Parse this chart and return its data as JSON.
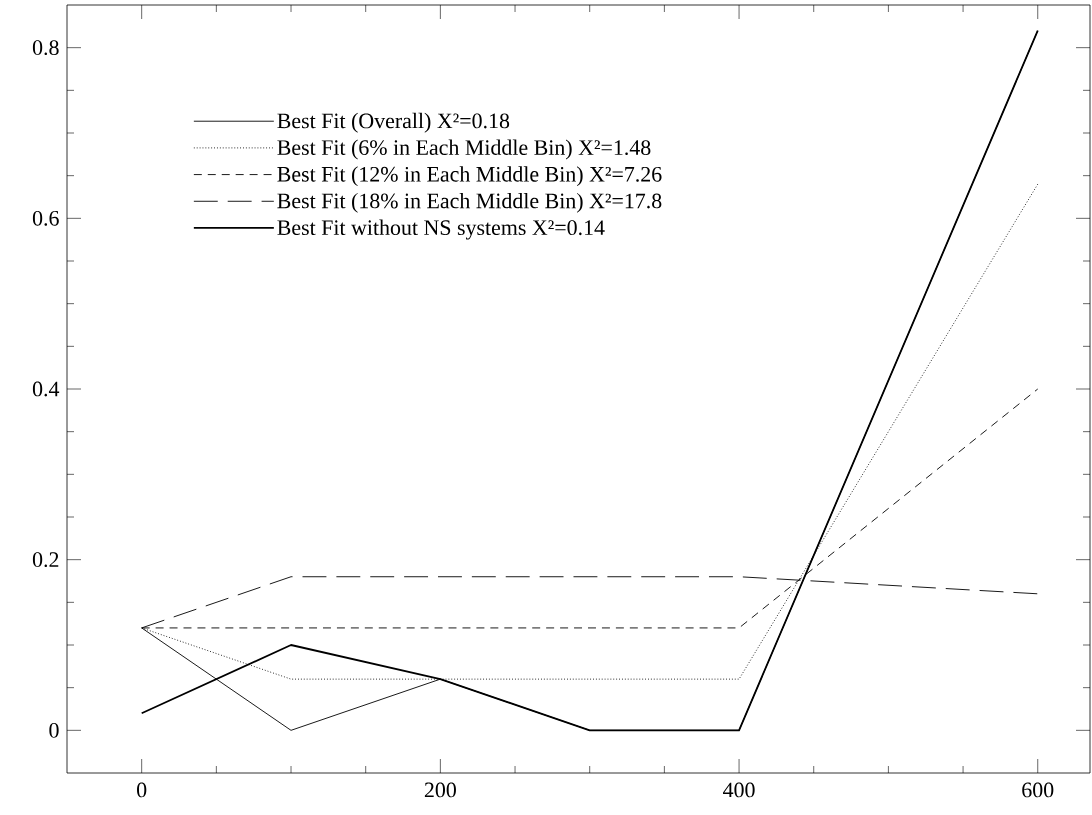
{
  "chart_data": {
    "type": "line",
    "x": [
      0,
      100,
      200,
      300,
      400,
      600
    ],
    "series": [
      {
        "name": "Best Fit (Overall)  X²=0.18",
        "color": "#000000",
        "line_style": "solid",
        "values": [
          0.12,
          0,
          0.06,
          0,
          0,
          0.82
        ]
      },
      {
        "name": "Best Fit (6% in Each Middle Bin) X²=1.48",
        "color": "#000000",
        "line_style": "dotted",
        "values": [
          0.12,
          0.06,
          0.06,
          0.06,
          0.06,
          0.64
        ]
      },
      {
        "name": "Best Fit (12% in Each Middle Bin) X²=7.26",
        "color": "#000000",
        "line_style": "dashed",
        "values": [
          0.12,
          0.12,
          0.12,
          0.12,
          0.12,
          0.4
        ]
      },
      {
        "name": "Best Fit (18% in Each Middle Bin) X²=17.8",
        "color": "#000000",
        "line_style": "long dashed",
        "values": [
          0.12,
          0.18,
          0.18,
          0.18,
          0.18,
          0.16
        ]
      },
      {
        "name": "Best Fit without NS systems X²=0.14",
        "color": "#000000",
        "line_style": "solid",
        "values": [
          0.02,
          0.1,
          0.06,
          0,
          0,
          0.82
        ]
      }
    ],
    "xlim": [
      -50,
      635
    ],
    "ylim": [
      -0.05,
      0.85
    ],
    "xticks": [
      0,
      200,
      400,
      600
    ],
    "yticks": [
      0,
      0.2,
      0.4,
      0.6,
      0.8
    ],
    "grid": false,
    "legend": "top left",
    "marker": "none"
  }
}
